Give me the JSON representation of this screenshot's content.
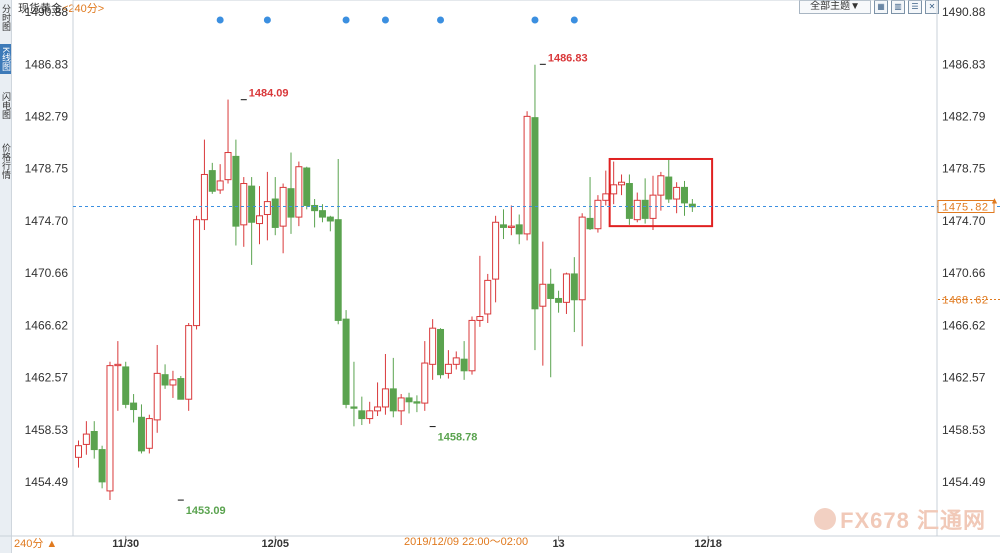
{
  "window": {
    "title": "现货黄金",
    "period": "<240分>",
    "theme_button": "全部主题▼",
    "bottom_period": "240分 ▲",
    "range_label": "2019/12/09 22:00～02:00",
    "logo_text": "FX678 汇通网"
  },
  "sidebar": {
    "items": [
      {
        "label": "分时图"
      },
      {
        "label": "K线图",
        "active": true
      },
      {
        "label": "闪电图"
      },
      {
        "label": "价格行情"
      }
    ]
  },
  "toolbar": {
    "icons": [
      "grid-icon",
      "bar-icon",
      "list-icon",
      "close-icon"
    ]
  },
  "colors": {
    "up": "#d9383a",
    "down": "#5aa34f",
    "price_line": "#3b8fe0",
    "annotation_box": "#e02020",
    "orange": "#e07a1f"
  },
  "chart_data": {
    "type": "candlestick",
    "y_ticks": [
      "1490.88",
      "1486.83",
      "1482.79",
      "1478.75",
      "1474.70",
      "1470.66",
      "1466.62",
      "1462.57",
      "1458.53",
      "1454.49"
    ],
    "y_range": [
      1452.0,
      1490.88
    ],
    "x_ticks": [
      {
        "label": "11/30",
        "index": 6
      },
      {
        "label": "12/05",
        "index": 25
      },
      {
        "label": "13",
        "index": 61
      },
      {
        "label": "12/18",
        "index": 80
      }
    ],
    "annotations": [
      {
        "label": "1484.09",
        "index": 21,
        "price": 1484.09,
        "kind": "high"
      },
      {
        "label": "1486.83",
        "index": 59,
        "price": 1486.83,
        "kind": "high"
      },
      {
        "label": "1458.78",
        "index": 45,
        "price": 1458.78,
        "kind": "low"
      },
      {
        "label": "1453.09",
        "index": 13,
        "price": 1453.09,
        "kind": "low"
      }
    ],
    "current_price": {
      "label": "1475.82",
      "value": 1475.82
    },
    "reference_price": {
      "label": "1468.62",
      "value": 1468.62
    },
    "event_markers": [
      18,
      24,
      34,
      39,
      46,
      58,
      63
    ],
    "highlight_range": {
      "from_index": 68,
      "to_index": 80,
      "low": 1474.3,
      "high": 1479.5
    },
    "candles": [
      {
        "o": 1456.4,
        "h": 1457.7,
        "l": 1455.6,
        "c": 1457.3
      },
      {
        "o": 1457.4,
        "h": 1459.2,
        "l": 1456.6,
        "c": 1458.2
      },
      {
        "o": 1458.4,
        "h": 1459.2,
        "l": 1456.3,
        "c": 1457.0
      },
      {
        "o": 1457.0,
        "h": 1457.3,
        "l": 1454.0,
        "c": 1454.5
      },
      {
        "o": 1453.8,
        "h": 1463.8,
        "l": 1453.1,
        "c": 1463.5
      },
      {
        "o": 1463.5,
        "h": 1465.4,
        "l": 1460.0,
        "c": 1463.6
      },
      {
        "o": 1463.4,
        "h": 1463.8,
        "l": 1460.2,
        "c": 1460.5
      },
      {
        "o": 1460.6,
        "h": 1461.3,
        "l": 1459.1,
        "c": 1460.1
      },
      {
        "o": 1459.5,
        "h": 1460.5,
        "l": 1456.7,
        "c": 1456.9
      },
      {
        "o": 1457.1,
        "h": 1459.7,
        "l": 1456.7,
        "c": 1459.4
      },
      {
        "o": 1459.3,
        "h": 1465.1,
        "l": 1458.3,
        "c": 1462.9
      },
      {
        "o": 1462.8,
        "h": 1463.6,
        "l": 1461.7,
        "c": 1462.0
      },
      {
        "o": 1462.0,
        "h": 1463.1,
        "l": 1461.0,
        "c": 1462.4
      },
      {
        "o": 1462.5,
        "h": 1462.7,
        "l": 1460.9,
        "c": 1460.9
      },
      {
        "o": 1460.9,
        "h": 1466.8,
        "l": 1460.0,
        "c": 1466.6
      },
      {
        "o": 1466.6,
        "h": 1475.1,
        "l": 1466.3,
        "c": 1474.8
      },
      {
        "o": 1474.8,
        "h": 1481.0,
        "l": 1474.0,
        "c": 1478.3
      },
      {
        "o": 1478.6,
        "h": 1479.2,
        "l": 1476.8,
        "c": 1477.0
      },
      {
        "o": 1477.1,
        "h": 1479.1,
        "l": 1476.8,
        "c": 1477.8
      },
      {
        "o": 1477.9,
        "h": 1484.1,
        "l": 1477.6,
        "c": 1480.0
      },
      {
        "o": 1479.7,
        "h": 1481.0,
        "l": 1472.8,
        "c": 1474.3
      },
      {
        "o": 1474.4,
        "h": 1478.1,
        "l": 1472.7,
        "c": 1477.6
      },
      {
        "o": 1477.4,
        "h": 1478.1,
        "l": 1471.3,
        "c": 1474.6
      },
      {
        "o": 1474.5,
        "h": 1477.4,
        "l": 1472.9,
        "c": 1475.1
      },
      {
        "o": 1475.2,
        "h": 1478.5,
        "l": 1473.2,
        "c": 1476.2
      },
      {
        "o": 1476.4,
        "h": 1478.1,
        "l": 1473.6,
        "c": 1474.2
      },
      {
        "o": 1474.3,
        "h": 1477.6,
        "l": 1472.2,
        "c": 1477.3
      },
      {
        "o": 1477.2,
        "h": 1480.0,
        "l": 1473.7,
        "c": 1475.0
      },
      {
        "o": 1475.0,
        "h": 1479.3,
        "l": 1474.3,
        "c": 1478.9
      },
      {
        "o": 1478.8,
        "h": 1478.9,
        "l": 1475.6,
        "c": 1475.9
      },
      {
        "o": 1475.9,
        "h": 1476.4,
        "l": 1474.2,
        "c": 1475.5
      },
      {
        "o": 1475.5,
        "h": 1476.0,
        "l": 1474.6,
        "c": 1475.0
      },
      {
        "o": 1475.0,
        "h": 1475.1,
        "l": 1473.9,
        "c": 1474.7
      },
      {
        "o": 1474.8,
        "h": 1479.5,
        "l": 1466.7,
        "c": 1467.0
      },
      {
        "o": 1467.1,
        "h": 1467.8,
        "l": 1460.2,
        "c": 1460.5
      },
      {
        "o": 1460.3,
        "h": 1463.8,
        "l": 1458.8,
        "c": 1460.2
      },
      {
        "o": 1460.0,
        "h": 1461.1,
        "l": 1458.9,
        "c": 1459.4
      },
      {
        "o": 1459.4,
        "h": 1460.7,
        "l": 1459.0,
        "c": 1460.0
      },
      {
        "o": 1460.0,
        "h": 1462.2,
        "l": 1459.6,
        "c": 1460.3
      },
      {
        "o": 1460.3,
        "h": 1464.4,
        "l": 1459.7,
        "c": 1461.7
      },
      {
        "o": 1461.7,
        "h": 1464.1,
        "l": 1459.5,
        "c": 1460.0
      },
      {
        "o": 1460.0,
        "h": 1461.3,
        "l": 1458.9,
        "c": 1461.0
      },
      {
        "o": 1461.0,
        "h": 1461.4,
        "l": 1459.8,
        "c": 1460.7
      },
      {
        "o": 1460.7,
        "h": 1461.2,
        "l": 1459.9,
        "c": 1460.6
      },
      {
        "o": 1460.6,
        "h": 1465.4,
        "l": 1460.0,
        "c": 1463.7
      },
      {
        "o": 1463.6,
        "h": 1467.1,
        "l": 1462.4,
        "c": 1466.4
      },
      {
        "o": 1466.3,
        "h": 1466.4,
        "l": 1462.5,
        "c": 1462.8
      },
      {
        "o": 1462.9,
        "h": 1464.7,
        "l": 1462.5,
        "c": 1463.6
      },
      {
        "o": 1463.6,
        "h": 1464.6,
        "l": 1463.2,
        "c": 1464.1
      },
      {
        "o": 1464.0,
        "h": 1465.4,
        "l": 1462.4,
        "c": 1463.1
      },
      {
        "o": 1463.1,
        "h": 1467.3,
        "l": 1462.8,
        "c": 1467.0
      },
      {
        "o": 1467.0,
        "h": 1472.0,
        "l": 1466.5,
        "c": 1467.3
      },
      {
        "o": 1467.5,
        "h": 1470.6,
        "l": 1466.8,
        "c": 1470.1
      },
      {
        "o": 1470.2,
        "h": 1475.1,
        "l": 1468.4,
        "c": 1474.6
      },
      {
        "o": 1474.4,
        "h": 1475.6,
        "l": 1473.3,
        "c": 1474.2
      },
      {
        "o": 1474.2,
        "h": 1475.9,
        "l": 1473.6,
        "c": 1474.3
      },
      {
        "o": 1474.4,
        "h": 1475.2,
        "l": 1472.9,
        "c": 1473.7
      },
      {
        "o": 1473.7,
        "h": 1483.2,
        "l": 1473.2,
        "c": 1482.8
      },
      {
        "o": 1482.7,
        "h": 1486.8,
        "l": 1464.7,
        "c": 1467.9
      },
      {
        "o": 1468.1,
        "h": 1473.1,
        "l": 1463.5,
        "c": 1469.8
      },
      {
        "o": 1469.8,
        "h": 1471.0,
        "l": 1462.6,
        "c": 1468.7
      },
      {
        "o": 1468.7,
        "h": 1469.3,
        "l": 1467.6,
        "c": 1468.4
      },
      {
        "o": 1468.4,
        "h": 1470.7,
        "l": 1467.5,
        "c": 1470.6
      },
      {
        "o": 1470.6,
        "h": 1471.9,
        "l": 1466.1,
        "c": 1468.6
      },
      {
        "o": 1468.6,
        "h": 1475.3,
        "l": 1465.0,
        "c": 1475.0
      },
      {
        "o": 1474.9,
        "h": 1478.1,
        "l": 1474.0,
        "c": 1474.1
      },
      {
        "o": 1474.1,
        "h": 1476.7,
        "l": 1473.8,
        "c": 1476.3
      },
      {
        "o": 1476.3,
        "h": 1478.6,
        "l": 1475.9,
        "c": 1476.8
      },
      {
        "o": 1476.8,
        "h": 1479.3,
        "l": 1476.0,
        "c": 1477.5
      },
      {
        "o": 1477.5,
        "h": 1478.3,
        "l": 1476.7,
        "c": 1477.7
      },
      {
        "o": 1477.6,
        "h": 1478.3,
        "l": 1474.4,
        "c": 1474.9
      },
      {
        "o": 1474.8,
        "h": 1476.9,
        "l": 1474.6,
        "c": 1476.3
      },
      {
        "o": 1476.3,
        "h": 1478.0,
        "l": 1474.5,
        "c": 1474.9
      },
      {
        "o": 1474.9,
        "h": 1478.2,
        "l": 1474.0,
        "c": 1476.7
      },
      {
        "o": 1476.7,
        "h": 1478.5,
        "l": 1475.5,
        "c": 1478.2
      },
      {
        "o": 1478.1,
        "h": 1479.5,
        "l": 1476.1,
        "c": 1476.4
      },
      {
        "o": 1476.4,
        "h": 1477.7,
        "l": 1475.3,
        "c": 1477.3
      },
      {
        "o": 1477.3,
        "h": 1477.8,
        "l": 1475.1,
        "c": 1476.1
      },
      {
        "o": 1476.0,
        "h": 1476.4,
        "l": 1475.4,
        "c": 1475.8
      }
    ]
  }
}
